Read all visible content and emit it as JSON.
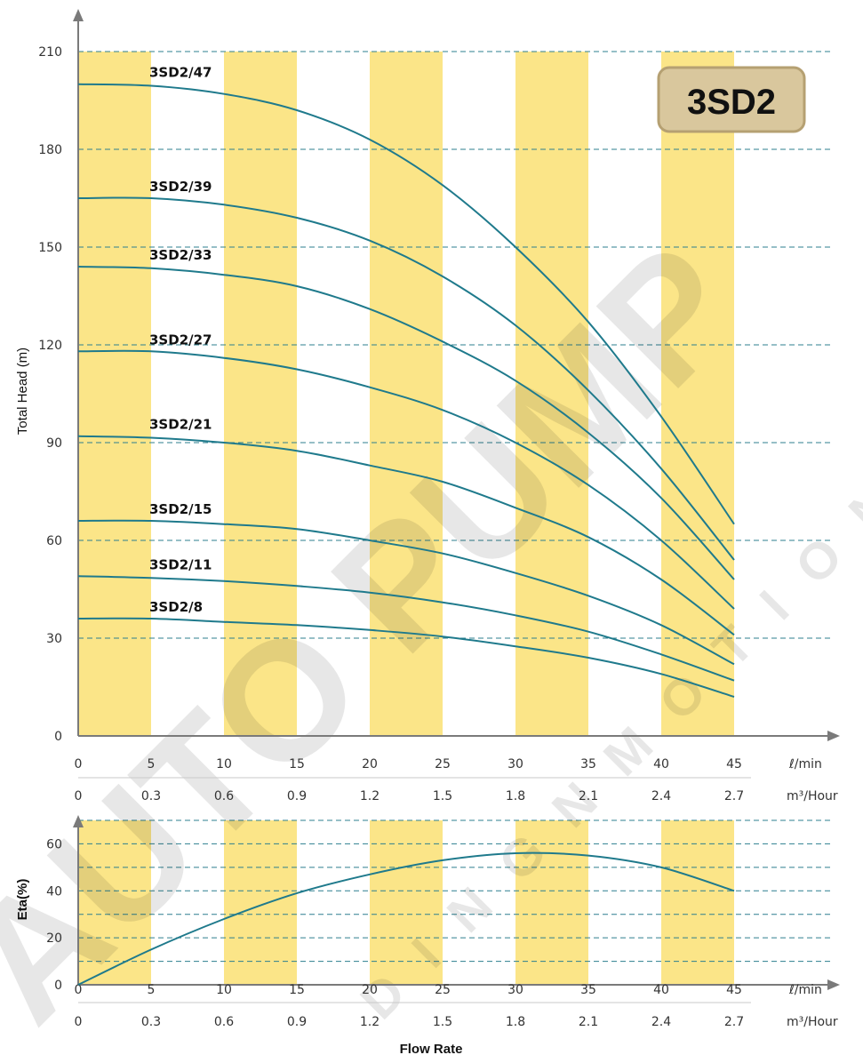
{
  "badge": "3SD2",
  "colors": {
    "band": "#fbe588",
    "curve": "#1f7a8c",
    "grid": "#2d7f8f",
    "axis": "#7a7a7a",
    "badge_fill": "#d9c79d",
    "badge_stroke": "#b5a072"
  },
  "chart_data": [
    {
      "type": "line",
      "ylabel": "Total Head (m)",
      "ylim": [
        0,
        210
      ],
      "y_ticks": [
        0,
        30,
        60,
        90,
        120,
        150,
        180,
        210
      ],
      "grid": "dashed horizontal",
      "x_ticks_lmin": [
        0,
        5,
        10,
        15,
        20,
        25,
        30,
        35,
        40,
        45
      ],
      "x_ticks_m3h": [
        "0",
        "0.3",
        "0.6",
        "0.9",
        "1.2",
        "1.5",
        "1.8",
        "2.1",
        "2.4",
        "2.7"
      ],
      "x_unit_lmin": "ℓ/min",
      "x_unit_m3h": "m³/Hour",
      "series": [
        {
          "name": "3SD2/47",
          "x": [
            0,
            5,
            10,
            15,
            20,
            25,
            30,
            35,
            40,
            45
          ],
          "values": [
            200,
            199.5,
            197,
            192,
            183,
            169,
            150,
            127,
            98,
            65
          ]
        },
        {
          "name": "3SD2/39",
          "x": [
            0,
            5,
            10,
            15,
            20,
            25,
            30,
            35,
            40,
            45
          ],
          "values": [
            165,
            165,
            163,
            159,
            152,
            141,
            126,
            106,
            82,
            54
          ]
        },
        {
          "name": "3SD2/33",
          "x": [
            0,
            5,
            10,
            15,
            20,
            25,
            30,
            35,
            40,
            45
          ],
          "values": [
            144,
            143.5,
            141.5,
            138,
            131,
            121,
            109,
            93,
            73,
            48
          ]
        },
        {
          "name": "3SD2/27",
          "x": [
            0,
            5,
            10,
            15,
            20,
            25,
            30,
            35,
            40,
            45
          ],
          "values": [
            118,
            118,
            116,
            112.5,
            107,
            100,
            90,
            77,
            60,
            39
          ]
        },
        {
          "name": "3SD2/21",
          "x": [
            0,
            5,
            10,
            15,
            20,
            25,
            30,
            35,
            40,
            45
          ],
          "values": [
            92,
            91.5,
            90,
            87.5,
            83,
            78,
            70,
            61,
            48,
            31
          ]
        },
        {
          "name": "3SD2/15",
          "x": [
            0,
            5,
            10,
            15,
            20,
            25,
            30,
            35,
            40,
            45
          ],
          "values": [
            66,
            66,
            65,
            63.5,
            60,
            56,
            50,
            43,
            34,
            22
          ]
        },
        {
          "name": "3SD2/11",
          "x": [
            0,
            5,
            10,
            15,
            20,
            25,
            30,
            35,
            40,
            45
          ],
          "values": [
            49,
            48.5,
            47.5,
            46,
            44,
            41,
            37,
            32,
            25,
            17
          ]
        },
        {
          "name": "3SD2/8",
          "x": [
            0,
            5,
            10,
            15,
            20,
            25,
            30,
            35,
            40,
            45
          ],
          "values": [
            36,
            36,
            35,
            34,
            32.5,
            30.5,
            27.5,
            24,
            19,
            12
          ]
        }
      ]
    },
    {
      "type": "line",
      "ylabel": "Eta(%)",
      "ylim": [
        0,
        70
      ],
      "y_ticks": [
        0,
        20,
        40,
        60
      ],
      "grid_lines": [
        10,
        20,
        30,
        40,
        50,
        60,
        70
      ],
      "xlabel": "Flow Rate",
      "x_ticks_lmin": [
        0,
        5,
        10,
        15,
        20,
        25,
        30,
        35,
        40,
        45
      ],
      "x_ticks_m3h": [
        "0",
        "0.3",
        "0.6",
        "0.9",
        "1.2",
        "1.5",
        "1.8",
        "2.1",
        "2.4",
        "2.7"
      ],
      "x_unit_lmin": "ℓ/min",
      "x_unit_m3h": "m³/Hour",
      "series": [
        {
          "x": [
            0,
            5,
            10,
            15,
            20,
            25,
            30,
            35,
            40,
            45
          ],
          "values": [
            0,
            15,
            28,
            39,
            47,
            53,
            56,
            55,
            50,
            40
          ]
        }
      ]
    }
  ]
}
